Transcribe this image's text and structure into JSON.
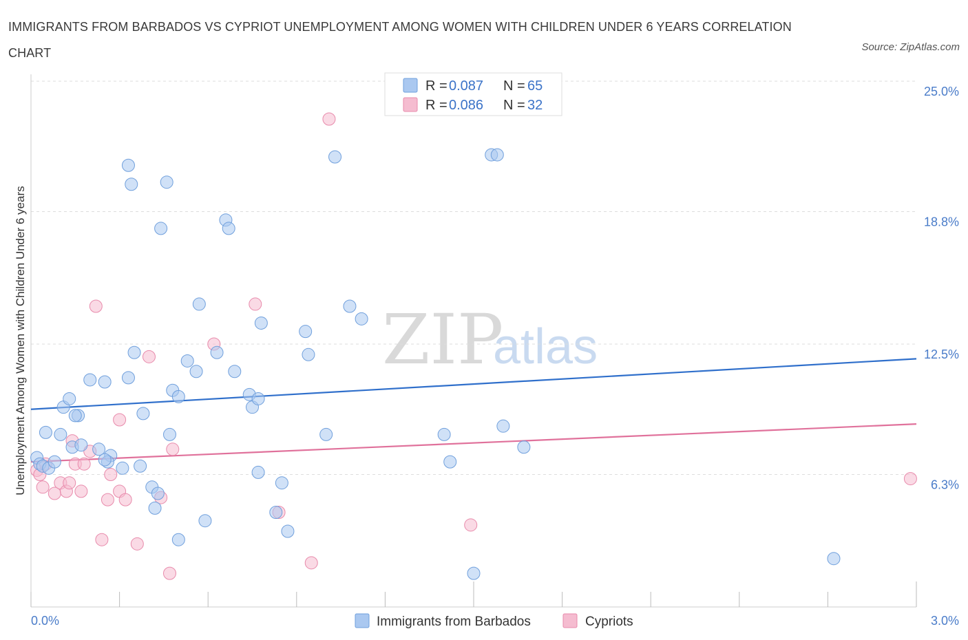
{
  "header": {
    "title": "IMMIGRANTS FROM BARBADOS VS CYPRIOT UNEMPLOYMENT AMONG WOMEN WITH CHILDREN UNDER 6 YEARS CORRELATION CHART",
    "source": "Source: ZipAtlas.com"
  },
  "watermark": {
    "zip": "ZIP",
    "atlas": "atlas"
  },
  "legend": {
    "rows": [
      {
        "r_label": "R = ",
        "r_value": "0.087",
        "n_label": "N = ",
        "n_value": "65",
        "color": "#aac8f0"
      },
      {
        "r_label": "R = ",
        "r_value": "0.086",
        "n_label": "N = ",
        "n_value": "32",
        "color": "#f5bcd0"
      }
    ]
  },
  "chart_data": {
    "type": "scatter",
    "title": "IMMIGRANTS FROM BARBADOS VS CYPRIOT UNEMPLOYMENT AMONG WOMEN WITH CHILDREN UNDER 6 YEARS CORRELATION CHART",
    "xlabel": "",
    "ylabel": "Unemployment Among Women with Children Under 6 years",
    "xlim": [
      0,
      3.0
    ],
    "ylim": [
      0,
      25.0
    ],
    "x_tick_labels": [
      "0.0%",
      "3.0%"
    ],
    "y_ticks": [
      6.3,
      12.5,
      18.8,
      25.0
    ],
    "y_tick_labels": [
      "6.3%",
      "12.5%",
      "18.8%",
      "25.0%"
    ],
    "grid": true,
    "legend_position": "top-center",
    "series": [
      {
        "name": "Immigrants from Barbados",
        "color": "#aac8f0",
        "stroke": "#6f9fdc",
        "trend_color": "#2f6fcb",
        "trend": [
          [
            0,
            9.4
          ],
          [
            3.0,
            11.8
          ]
        ],
        "points": [
          [
            0.02,
            7.1
          ],
          [
            0.03,
            6.8
          ],
          [
            0.04,
            6.7
          ],
          [
            0.05,
            8.3
          ],
          [
            0.06,
            6.6
          ],
          [
            0.08,
            6.9
          ],
          [
            0.1,
            8.2
          ],
          [
            0.11,
            9.5
          ],
          [
            0.13,
            9.9
          ],
          [
            0.16,
            9.1
          ],
          [
            0.14,
            7.6
          ],
          [
            0.17,
            7.7
          ],
          [
            0.2,
            10.8
          ],
          [
            0.23,
            7.5
          ],
          [
            0.25,
            10.7
          ],
          [
            0.27,
            7.2
          ],
          [
            0.26,
            6.9
          ],
          [
            0.31,
            6.6
          ],
          [
            0.33,
            10.9
          ],
          [
            0.35,
            12.1
          ],
          [
            0.38,
            9.2
          ],
          [
            0.37,
            6.7
          ],
          [
            0.41,
            5.7
          ],
          [
            0.43,
            5.4
          ],
          [
            0.42,
            4.7
          ],
          [
            0.47,
            8.2
          ],
          [
            0.48,
            10.3
          ],
          [
            0.5,
            10.0
          ],
          [
            0.53,
            11.7
          ],
          [
            0.56,
            11.2
          ],
          [
            0.57,
            14.4
          ],
          [
            0.59,
            4.1
          ],
          [
            0.63,
            12.1
          ],
          [
            0.66,
            18.4
          ],
          [
            0.67,
            18.0
          ],
          [
            0.69,
            11.2
          ],
          [
            0.74,
            10.1
          ],
          [
            0.75,
            9.5
          ],
          [
            0.77,
            9.9
          ],
          [
            0.78,
            13.5
          ],
          [
            0.83,
            4.5
          ],
          [
            0.85,
            5.9
          ],
          [
            0.87,
            3.6
          ],
          [
            0.93,
            13.1
          ],
          [
            0.94,
            12.0
          ],
          [
            1.0,
            8.2
          ],
          [
            1.03,
            21.4
          ],
          [
            1.08,
            14.3
          ],
          [
            1.12,
            13.7
          ],
          [
            1.4,
            8.2
          ],
          [
            1.42,
            6.9
          ],
          [
            1.56,
            21.5
          ],
          [
            1.58,
            21.5
          ],
          [
            1.6,
            8.6
          ],
          [
            1.67,
            7.6
          ],
          [
            0.33,
            21.0
          ],
          [
            0.34,
            20.1
          ],
          [
            0.46,
            20.2
          ],
          [
            0.44,
            18.0
          ],
          [
            0.5,
            3.2
          ],
          [
            0.77,
            6.4
          ],
          [
            1.5,
            1.6
          ],
          [
            2.72,
            2.3
          ],
          [
            0.15,
            9.1
          ],
          [
            0.25,
            7.0
          ]
        ]
      },
      {
        "name": "Cypriots",
        "color": "#f5bcd0",
        "stroke": "#e88aab",
        "trend_color": "#e0719b",
        "trend": [
          [
            0,
            6.9
          ],
          [
            3.0,
            8.7
          ]
        ],
        "points": [
          [
            0.02,
            6.5
          ],
          [
            0.03,
            6.3
          ],
          [
            0.04,
            5.7
          ],
          [
            0.05,
            6.8
          ],
          [
            0.08,
            5.4
          ],
          [
            0.1,
            5.9
          ],
          [
            0.12,
            5.5
          ],
          [
            0.14,
            7.9
          ],
          [
            0.15,
            6.8
          ],
          [
            0.17,
            5.5
          ],
          [
            0.18,
            6.8
          ],
          [
            0.2,
            7.4
          ],
          [
            0.22,
            14.3
          ],
          [
            0.24,
            3.2
          ],
          [
            0.26,
            5.1
          ],
          [
            0.27,
            6.3
          ],
          [
            0.3,
            8.9
          ],
          [
            0.3,
            5.5
          ],
          [
            0.32,
            5.1
          ],
          [
            0.36,
            3.0
          ],
          [
            0.4,
            11.9
          ],
          [
            0.44,
            5.2
          ],
          [
            0.47,
            1.6
          ],
          [
            0.48,
            7.5
          ],
          [
            0.62,
            12.5
          ],
          [
            0.76,
            14.4
          ],
          [
            0.84,
            4.5
          ],
          [
            0.95,
            2.1
          ],
          [
            1.01,
            23.2
          ],
          [
            1.49,
            3.9
          ],
          [
            2.98,
            6.1
          ],
          [
            0.13,
            5.9
          ]
        ]
      }
    ]
  }
}
